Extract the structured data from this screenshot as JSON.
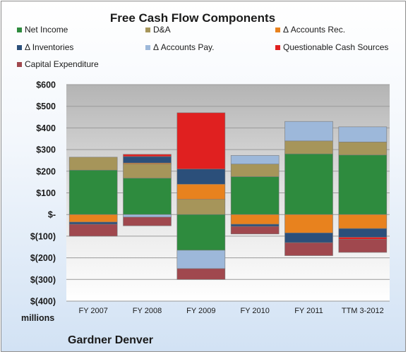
{
  "chart_data": {
    "type": "bar",
    "stacked": true,
    "title": "Free Cash Flow Components",
    "categories": [
      "FY 2007",
      "FY 2008",
      "FY 2009",
      "FY 2010",
      "FY 2011",
      "TTM 3-2012"
    ],
    "series": [
      {
        "name": "Net Income",
        "color": "#2e8b3e",
        "values": [
          205,
          168,
          -165,
          175,
          280,
          275
        ]
      },
      {
        "name": "D&A",
        "color": "#a6955a",
        "values": [
          60,
          65,
          70,
          58,
          60,
          60
        ]
      },
      {
        "name": "Δ Accounts Rec.",
        "color": "#e8821e",
        "values": [
          -35,
          5,
          70,
          -45,
          -85,
          -65
        ]
      },
      {
        "name": "Δ Inventories",
        "color": "#2b4f7a",
        "values": [
          -10,
          30,
          70,
          -10,
          -45,
          -40
        ]
      },
      {
        "name": "Δ Accounts Pay.",
        "color": "#9db8da",
        "values": [
          0,
          -12,
          -85,
          40,
          90,
          70
        ]
      },
      {
        "name": "Questionable Cash Sources",
        "color": "#e02020",
        "values": [
          0,
          10,
          260,
          0,
          0,
          -10
        ]
      },
      {
        "name": "Capital Expenditure",
        "color": "#a0484e",
        "values": [
          -55,
          -40,
          -50,
          -35,
          -60,
          -60
        ]
      }
    ],
    "ylim": [
      -400,
      600
    ],
    "yticks": [
      600,
      500,
      400,
      300,
      200,
      100,
      0,
      -100,
      -200,
      -300,
      -400
    ],
    "ytick_labels": [
      "$600",
      "$500",
      "$400",
      "$300",
      "$200",
      "$100",
      "$-",
      "$(100)",
      "$(200)",
      "$(300)",
      "$(400)"
    ],
    "unit_label": "millions",
    "company": "Gardner Denver",
    "legend_position": "top",
    "grid": true
  }
}
